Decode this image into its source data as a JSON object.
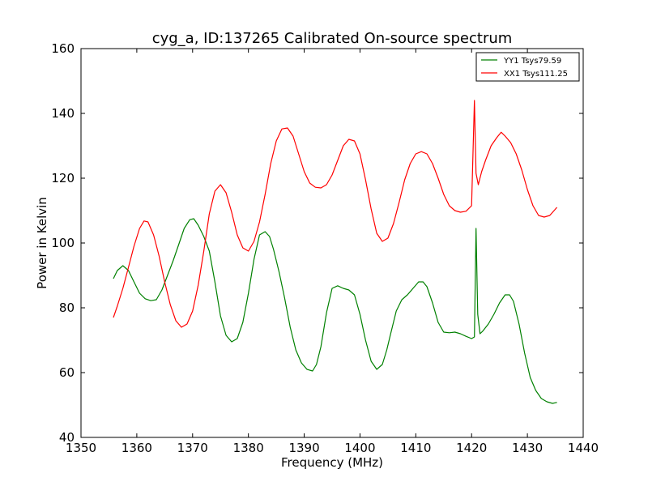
{
  "chart_data": {
    "type": "line",
    "title": "cyg_a, ID:137265 Calibrated On-source spectrum",
    "xlabel": "Frequency (MHz)",
    "ylabel": "Power in Kelvin",
    "xlim": [
      1350,
      1440
    ],
    "ylim": [
      40,
      160
    ],
    "xticks": [
      1350,
      1360,
      1370,
      1380,
      1390,
      1400,
      1410,
      1420,
      1430,
      1440
    ],
    "yticks": [
      40,
      60,
      80,
      100,
      120,
      140,
      160
    ],
    "grid": false,
    "legend_position": "top-right",
    "series": [
      {
        "name": "YY1 Tsys79.59",
        "color": "#008000",
        "x": [
          1355.8,
          1356.5,
          1357.5,
          1358.5,
          1359.5,
          1360.5,
          1361.5,
          1362.5,
          1363.5,
          1364.5,
          1365.5,
          1366.5,
          1367.5,
          1368.5,
          1369.5,
          1370.2,
          1371,
          1372,
          1373,
          1374,
          1375,
          1376,
          1377,
          1378,
          1379,
          1380,
          1381,
          1382,
          1383,
          1383.8,
          1384.5,
          1385.5,
          1386.5,
          1387.5,
          1388.5,
          1389.5,
          1390.5,
          1391.5,
          1392.2,
          1393,
          1394,
          1395,
          1396,
          1397,
          1398,
          1399,
          1400,
          1401,
          1402,
          1403,
          1404,
          1404.8,
          1405.5,
          1406.5,
          1407.5,
          1408.5,
          1409.5,
          1410.5,
          1411.3,
          1412,
          1413,
          1414,
          1415,
          1416,
          1417,
          1418,
          1419,
          1420,
          1420.5,
          1420.8,
          1421.1,
          1421.5,
          1422,
          1423,
          1424,
          1425,
          1426,
          1426.8,
          1427.5,
          1428.5,
          1429.5,
          1430.5,
          1431.5,
          1432.5,
          1433.5,
          1434.5,
          1435.3
        ],
        "values": [
          89,
          91.5,
          93,
          91.5,
          88,
          84.5,
          82.8,
          82.2,
          82.5,
          85.5,
          90,
          94.5,
          99.5,
          104.5,
          107.2,
          107.5,
          105.5,
          102,
          97.5,
          88,
          77.5,
          71.5,
          69.5,
          70.5,
          75.5,
          84.5,
          95,
          102.5,
          103.5,
          102,
          98,
          91,
          83,
          74,
          67,
          63,
          61,
          60.5,
          62.5,
          68,
          78.5,
          86,
          86.8,
          86,
          85.5,
          84,
          78,
          70,
          63.5,
          61,
          62.5,
          67,
          72,
          79,
          82.5,
          84,
          86,
          88,
          88,
          86.5,
          81.5,
          75.5,
          72.5,
          72.3,
          72.5,
          72,
          71.2,
          70.5,
          71,
          104.5,
          78,
          72,
          72.8,
          75,
          78,
          81.5,
          84,
          84,
          82,
          75,
          66,
          58.5,
          54.5,
          52,
          51,
          50.5,
          50.8
        ]
      },
      {
        "name": "XX1 Tsys111.25",
        "color": "#ff0000",
        "x": [
          1355.8,
          1356.5,
          1357.5,
          1358.5,
          1359.5,
          1360.5,
          1361.3,
          1362,
          1363,
          1364,
          1365,
          1366,
          1367,
          1368,
          1369,
          1370,
          1371,
          1372,
          1373,
          1374,
          1375,
          1376,
          1377,
          1378,
          1379,
          1380,
          1381,
          1382,
          1383,
          1384,
          1385,
          1386,
          1387,
          1388,
          1389,
          1390,
          1391,
          1392,
          1393,
          1394,
          1395,
          1396,
          1397,
          1398,
          1399,
          1400,
          1401,
          1402,
          1403,
          1404,
          1405,
          1406,
          1407,
          1408,
          1409,
          1410,
          1411,
          1412,
          1413,
          1414,
          1415,
          1416,
          1417,
          1418,
          1419,
          1420,
          1420.5,
          1420.8,
          1421.2,
          1421.8,
          1422.5,
          1423.5,
          1424.5,
          1425.3,
          1426,
          1427,
          1428,
          1429,
          1430,
          1431,
          1432,
          1433,
          1434,
          1435.3
        ],
        "values": [
          77,
          80.5,
          86,
          92.5,
          99,
          104.5,
          106.8,
          106.5,
          102.5,
          96,
          88,
          81,
          76,
          74,
          75,
          79,
          87,
          97.5,
          109,
          116,
          118,
          115.5,
          109.5,
          102.5,
          98.5,
          97.5,
          100.5,
          106.5,
          115,
          124.5,
          131.5,
          135.2,
          135.5,
          133,
          127.5,
          122,
          118.5,
          117.2,
          117,
          118,
          121,
          125.5,
          130,
          132,
          131.5,
          127.5,
          119.5,
          110.5,
          103,
          100.5,
          101.5,
          106,
          112.5,
          119.5,
          124.5,
          127.5,
          128.2,
          127.5,
          124.5,
          120,
          115,
          111.5,
          110,
          109.5,
          109.8,
          111.5,
          144,
          121.5,
          118,
          122,
          125.5,
          130,
          132.5,
          134.2,
          133,
          131,
          127.5,
          122.5,
          116.5,
          111.5,
          108.5,
          108,
          108.5,
          111
        ]
      }
    ]
  }
}
